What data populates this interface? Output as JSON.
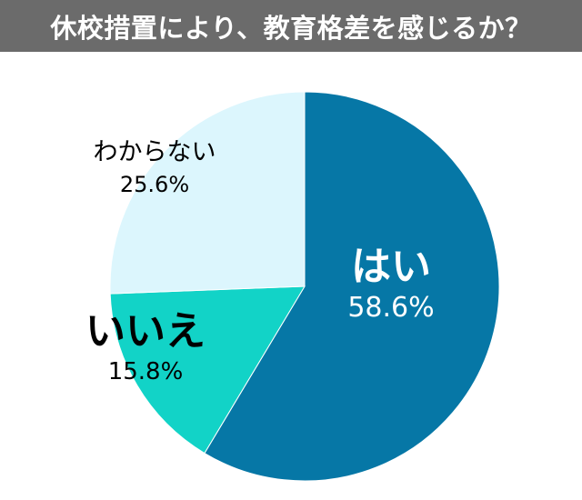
{
  "title": "休校措置により、教育格差を感じるか？",
  "colors": {
    "title_bg": "#6b6b6b",
    "title_text": "#ffffff"
  },
  "chart_data": {
    "type": "pie",
    "title": "休校措置により、教育格差を感じるか？",
    "slices": [
      {
        "label": "はい",
        "value": 58.6,
        "value_label": "58.6%",
        "color": "#0677a6",
        "label_color": "#ffffff"
      },
      {
        "label": "いいえ",
        "value": 15.8,
        "value_label": "15.8%",
        "color": "#12d3c7",
        "label_color": "#000000"
      },
      {
        "label": "わからない",
        "value": 25.6,
        "value_label": "25.6%",
        "color": "#dcf6fd",
        "label_color": "#000000"
      }
    ],
    "start_angle": "12 o'clock",
    "direction": "clockwise"
  }
}
